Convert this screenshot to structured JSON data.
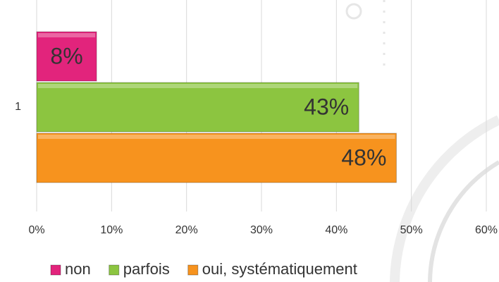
{
  "chart_data": {
    "type": "hbar",
    "categories": [
      "1"
    ],
    "series": [
      {
        "name": "non",
        "color": "#e2247c",
        "values": [
          8
        ],
        "value_labels": [
          "8%"
        ]
      },
      {
        "name": "parfois",
        "color": "#8cc540",
        "values": [
          43
        ],
        "value_labels": [
          "43%"
        ]
      },
      {
        "name": "oui, systématiquement",
        "color": "#f7931e",
        "values": [
          48
        ],
        "value_labels": [
          "48%"
        ]
      }
    ],
    "xlim": [
      0,
      60
    ],
    "xticks": [
      {
        "value": 0,
        "label": "0%"
      },
      {
        "value": 10,
        "label": "10%"
      },
      {
        "value": 20,
        "label": "20%"
      },
      {
        "value": 30,
        "label": "30%"
      },
      {
        "value": 40,
        "label": "40%"
      },
      {
        "value": 50,
        "label": "50%"
      },
      {
        "value": 60,
        "label": "60%"
      }
    ],
    "grid": true,
    "legend": "bottom"
  }
}
